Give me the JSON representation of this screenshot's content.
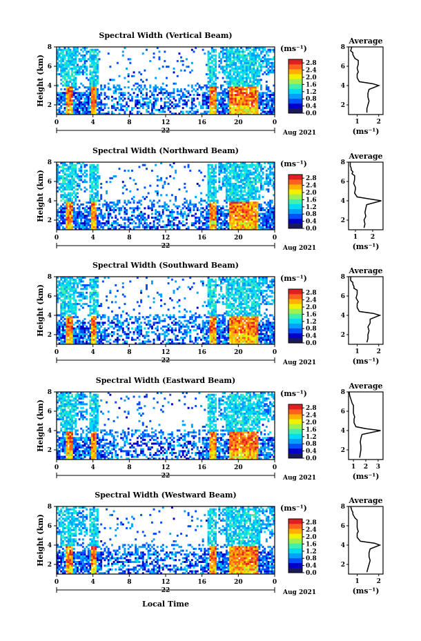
{
  "figure": {
    "local_time_label": "Local Time",
    "height_label": "Height (km)",
    "unit_label": "(ms⁻¹)",
    "average_title": "Average",
    "date_label": "Aug 2021",
    "day_label": "22"
  },
  "colors": {
    "colormap": [
      "#1a1a5a",
      "#0000c8",
      "#0050ff",
      "#00a0ff",
      "#00dcf0",
      "#40f0b0",
      "#a0f050",
      "#f0f000",
      "#ffb000",
      "#ff6020",
      "#e02020"
    ]
  },
  "chart_data": [
    {
      "type": "heatmap",
      "title": "Spectral Width (Vertical Beam)",
      "xlabel": "",
      "ylabel": "Height (km)",
      "x_ticks": [
        "0",
        "4",
        "8",
        "12",
        "16",
        "20",
        "0"
      ],
      "y_ticks": [
        "2",
        "4",
        "6",
        "8"
      ],
      "xlim": [
        0,
        24
      ],
      "ylim": [
        1,
        8
      ],
      "colorbar_ticks": [
        "0.0",
        "0.4",
        "0.8",
        "1.2",
        "1.6",
        "2.0",
        "2.4",
        "2.8"
      ],
      "colorbar_range": [
        0,
        3.0
      ],
      "average_profile": {
        "x_ticks": [
          "1",
          "2"
        ],
        "xlim": [
          0.6,
          2.2
        ],
        "ylim": [
          1,
          8
        ],
        "x": [
          1.45,
          1.45,
          1.5,
          1.55,
          1.5,
          1.5,
          1.55,
          2.0,
          1.7,
          1.1,
          1.0,
          1.0,
          1.05,
          1.0,
          1.05,
          1.05,
          0.9,
          0.85,
          0.8,
          0.8,
          0.7,
          0.75
        ],
        "y": [
          1.2,
          1.6,
          2.0,
          2.4,
          2.8,
          3.2,
          3.6,
          4.0,
          4.2,
          4.4,
          4.8,
          5.2,
          5.4,
          5.8,
          6.2,
          6.6,
          6.8,
          7.0,
          7.2,
          7.4,
          7.6,
          8.0
        ]
      }
    },
    {
      "type": "heatmap",
      "title": "Spectral Width (Northward Beam)",
      "xlabel": "",
      "ylabel": "Height (km)",
      "x_ticks": [
        "0",
        "4",
        "8",
        "12",
        "16",
        "20",
        "0"
      ],
      "y_ticks": [
        "2",
        "4",
        "6",
        "8"
      ],
      "xlim": [
        0,
        24
      ],
      "ylim": [
        1,
        8
      ],
      "colorbar_ticks": [
        "0.0",
        "0.4",
        "0.8",
        "1.2",
        "1.6",
        "2.0",
        "2.4",
        "2.8"
      ],
      "colorbar_range": [
        0,
        3.0
      ],
      "average_profile": {
        "x_ticks": [
          "1",
          "2"
        ],
        "xlim": [
          0.6,
          2.6
        ],
        "ylim": [
          1,
          8
        ],
        "x": [
          1.5,
          1.55,
          1.5,
          1.6,
          1.55,
          1.6,
          1.65,
          2.5,
          1.8,
          1.1,
          0.95,
          1.0,
          1.0,
          0.9,
          0.95,
          0.95,
          0.8,
          0.85,
          0.75,
          0.75,
          0.7,
          0.7
        ],
        "y": [
          1.2,
          1.6,
          2.0,
          2.4,
          2.8,
          3.2,
          3.6,
          4.0,
          4.2,
          4.4,
          4.8,
          5.2,
          5.4,
          5.8,
          6.2,
          6.6,
          6.8,
          7.0,
          7.2,
          7.4,
          7.6,
          8.0
        ]
      }
    },
    {
      "type": "heatmap",
      "title": "Spectral Width (Southward Beam)",
      "xlabel": "",
      "ylabel": "Height (km)",
      "x_ticks": [
        "0",
        "4",
        "8",
        "12",
        "16",
        "20",
        "0"
      ],
      "y_ticks": [
        "2",
        "4",
        "6",
        "8"
      ],
      "xlim": [
        0,
        24
      ],
      "ylim": [
        1,
        8
      ],
      "colorbar_ticks": [
        "0.0",
        "0.4",
        "0.8",
        "1.2",
        "1.6",
        "2.0",
        "2.4",
        "2.8"
      ],
      "colorbar_range": [
        0,
        3.0
      ],
      "average_profile": {
        "x_ticks": [
          "1",
          "2"
        ],
        "xlim": [
          0.6,
          2.2
        ],
        "ylim": [
          1,
          8
        ],
        "x": [
          1.45,
          1.5,
          1.5,
          1.55,
          1.5,
          1.6,
          1.6,
          2.05,
          1.75,
          1.1,
          1.0,
          1.0,
          1.05,
          0.95,
          1.0,
          1.0,
          0.85,
          0.85,
          0.8,
          0.8,
          0.7,
          0.7
        ],
        "y": [
          1.2,
          1.6,
          2.0,
          2.4,
          2.8,
          3.2,
          3.6,
          4.0,
          4.2,
          4.4,
          4.8,
          5.2,
          5.4,
          5.8,
          6.2,
          6.6,
          6.8,
          7.0,
          7.2,
          7.4,
          7.6,
          8.0
        ]
      }
    },
    {
      "type": "heatmap",
      "title": "Spectral Width (Eastward Beam)",
      "xlabel": "",
      "ylabel": "Height (km)",
      "x_ticks": [
        "0",
        "4",
        "8",
        "12",
        "16",
        "20",
        "0"
      ],
      "y_ticks": [
        "2",
        "4",
        "6",
        "8"
      ],
      "xlim": [
        0,
        24
      ],
      "ylim": [
        1,
        8
      ],
      "colorbar_ticks": [
        "0.0",
        "0.4",
        "0.8",
        "1.2",
        "1.6",
        "2.0",
        "2.4",
        "2.8"
      ],
      "colorbar_range": [
        0,
        3.0
      ],
      "average_profile": {
        "x_ticks": [
          "1",
          "2",
          "3"
        ],
        "xlim": [
          0.6,
          3.4
        ],
        "ylim": [
          1,
          8
        ],
        "x": [
          1.5,
          1.55,
          1.6,
          1.6,
          1.55,
          1.6,
          1.7,
          3.2,
          2.0,
          1.2,
          1.05,
          1.05,
          1.1,
          1.0,
          1.0,
          1.0,
          0.9,
          0.85,
          0.8,
          0.75,
          0.7,
          0.65
        ],
        "y": [
          1.2,
          1.6,
          2.0,
          2.4,
          2.8,
          3.2,
          3.6,
          4.0,
          4.2,
          4.4,
          4.8,
          5.2,
          5.4,
          5.8,
          6.2,
          6.6,
          6.8,
          7.0,
          7.2,
          7.4,
          7.6,
          8.0
        ]
      }
    },
    {
      "type": "heatmap",
      "title": "Spectral Width (Westward Beam)",
      "xlabel": "Local Time",
      "ylabel": "Height (km)",
      "x_ticks": [
        "0",
        "4",
        "8",
        "12",
        "16",
        "20",
        "0"
      ],
      "y_ticks": [
        "2",
        "4",
        "6",
        "8"
      ],
      "xlim": [
        0,
        24
      ],
      "ylim": [
        1,
        8
      ],
      "colorbar_ticks": [
        "0.0",
        "0.4",
        "0.8",
        "1.2",
        "1.6",
        "2.0",
        "2.4",
        "2.8"
      ],
      "colorbar_range": [
        0,
        3.0
      ],
      "average_profile": {
        "x_ticks": [
          "1",
          "2"
        ],
        "xlim": [
          0.6,
          2.2
        ],
        "ylim": [
          1,
          8
        ],
        "x": [
          1.45,
          1.5,
          1.55,
          1.6,
          1.55,
          1.55,
          1.6,
          2.05,
          1.8,
          1.15,
          1.0,
          1.0,
          1.05,
          1.0,
          1.0,
          1.0,
          0.9,
          0.85,
          0.8,
          0.8,
          0.75,
          0.7
        ],
        "y": [
          1.2,
          1.6,
          2.0,
          2.4,
          2.8,
          3.2,
          3.6,
          4.0,
          4.2,
          4.4,
          4.8,
          5.2,
          5.4,
          5.8,
          6.2,
          6.6,
          6.8,
          7.0,
          7.2,
          7.4,
          7.6,
          8.0
        ]
      }
    }
  ]
}
